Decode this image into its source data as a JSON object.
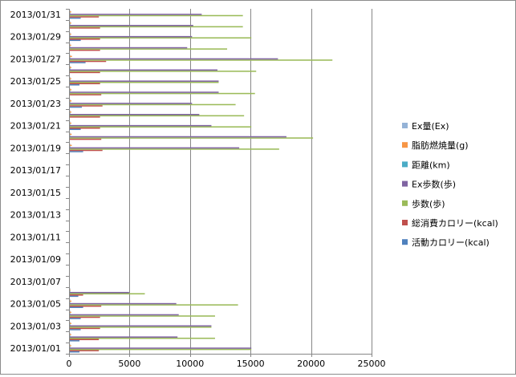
{
  "chart_data": {
    "type": "bar",
    "orientation": "horizontal",
    "categories": [
      "2013/01/01",
      "2013/01/02",
      "2013/01/03",
      "2013/01/04",
      "2013/01/05",
      "2013/01/06",
      "2013/01/07",
      "2013/01/08",
      "2013/01/09",
      "2013/01/10",
      "2013/01/11",
      "2013/01/12",
      "2013/01/13",
      "2013/01/14",
      "2013/01/15",
      "2013/01/16",
      "2013/01/17",
      "2013/01/18",
      "2013/01/19",
      "2013/01/20",
      "2013/01/21",
      "2013/01/22",
      "2013/01/23",
      "2013/01/24",
      "2013/01/25",
      "2013/01/26",
      "2013/01/27",
      "2013/01/28",
      "2013/01/29",
      "2013/01/30",
      "2013/01/31"
    ],
    "category_labels_shown": [
      "2013/01/01",
      "2013/01/03",
      "2013/01/05",
      "2013/01/07",
      "2013/01/09",
      "2013/01/11",
      "2013/01/13",
      "2013/01/15",
      "2013/01/17",
      "2013/01/19",
      "2013/01/21",
      "2013/01/23",
      "2013/01/25",
      "2013/01/27",
      "2013/01/29",
      "2013/01/31"
    ],
    "xlim": [
      0,
      25000
    ],
    "xticks": [
      0,
      5000,
      10000,
      15000,
      20000,
      25000
    ],
    "xtick_labels": [
      "0",
      "5000",
      "10000",
      "15000",
      "20000",
      "25000"
    ],
    "grid": "vertical major gridlines",
    "legend_position": "right",
    "series": [
      {
        "name": "活動カロリー(kcal)",
        "color": "#4f81bd",
        "values": [
          800,
          800,
          900,
          900,
          1100,
          700,
          0,
          0,
          0,
          0,
          0,
          0,
          0,
          0,
          0,
          0,
          0,
          0,
          1100,
          0,
          900,
          0,
          1000,
          0,
          800,
          0,
          1300,
          0,
          900,
          0,
          900
        ]
      },
      {
        "name": "総消費カロリー(kcal)",
        "color": "#c0504d",
        "values": [
          2400,
          2400,
          2500,
          2500,
          2600,
          1100,
          0,
          0,
          0,
          0,
          0,
          0,
          0,
          0,
          0,
          0,
          0,
          0,
          2700,
          2600,
          2500,
          2500,
          2700,
          2600,
          2500,
          2500,
          3000,
          2500,
          2500,
          2500,
          2400
        ]
      },
      {
        "name": "歩数(歩)",
        "color": "#9bbb59",
        "values": [
          15000,
          12000,
          11700,
          12000,
          13900,
          6200,
          0,
          0,
          0,
          0,
          0,
          0,
          0,
          0,
          0,
          0,
          0,
          0,
          17300,
          20100,
          15000,
          14400,
          13700,
          15300,
          12300,
          15400,
          21700,
          13000,
          15000,
          14300,
          14300
        ]
      },
      {
        "name": "Ex歩数(歩)",
        "color": "#8064a2",
        "values": [
          15000,
          8900,
          11700,
          9000,
          8800,
          4900,
          0,
          0,
          0,
          0,
          0,
          0,
          0,
          0,
          0,
          0,
          0,
          0,
          14000,
          17900,
          11700,
          10700,
          10100,
          12300,
          12300,
          12200,
          17200,
          9700,
          10100,
          10200,
          10900
        ]
      },
      {
        "name": "距離(km)",
        "color": "#4bacc6",
        "values": [
          10,
          8,
          9,
          8,
          9,
          4,
          0,
          0,
          0,
          0,
          0,
          0,
          0,
          0,
          0,
          0,
          0,
          0,
          12,
          14,
          10,
          10,
          10,
          11,
          9,
          11,
          15,
          9,
          10,
          10,
          10
        ]
      },
      {
        "name": "脂肪燃焼量(g)",
        "color": "#f79646",
        "values": [
          110,
          110,
          120,
          120,
          130,
          55,
          0,
          0,
          0,
          0,
          0,
          0,
          0,
          0,
          0,
          0,
          0,
          0,
          160,
          150,
          120,
          120,
          130,
          130,
          110,
          120,
          180,
          110,
          110,
          110,
          110
        ]
      },
      {
        "name": "Ex量(Ex)",
        "color": "#95b3d7",
        "values": [
          4,
          3,
          4,
          3,
          4,
          2,
          0,
          0,
          0,
          0,
          0,
          0,
          0,
          0,
          0,
          0,
          0,
          0,
          5,
          6,
          4,
          4,
          4,
          5,
          4,
          5,
          6,
          4,
          4,
          4,
          4
        ]
      }
    ]
  }
}
